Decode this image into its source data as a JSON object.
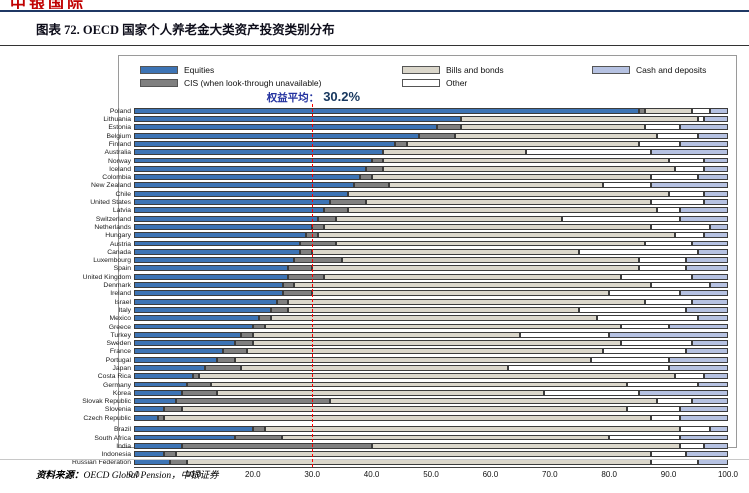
{
  "header": {
    "logo_text": "中银国际",
    "title": "图表 72. OECD 国家个人养老金大类资产投资类别分布"
  },
  "footer": {
    "source_label": "资料来源：",
    "source_text": "OECD Global Pension，中银证券"
  },
  "chart_data": {
    "type": "bar",
    "stacked": true,
    "orientation": "horizontal",
    "unit": "percent",
    "xlim": [
      0,
      100
    ],
    "x_ticks": [
      "0.0",
      "10.0",
      "20.0",
      "30.0",
      "40.0",
      "50.0",
      "60.0",
      "70.0",
      "80.0",
      "90.0",
      "100.0"
    ],
    "legend_position": "top",
    "grid": false,
    "annotation": {
      "label": "权益平均：",
      "value": "30.2%",
      "x": 30.2,
      "line_color": "#ff0000"
    },
    "series": [
      {
        "name": "Equities",
        "color": "#3d74b5"
      },
      {
        "name": "CIS (when look-through unavailable)",
        "color": "#808080"
      },
      {
        "name": "Bills and bonds",
        "color": "#dbd7cb"
      },
      {
        "name": "Other",
        "color": "#ffffff"
      },
      {
        "name": "Cash and deposits",
        "color": "#b6c2e2"
      }
    ],
    "gap_after_index": 37,
    "countries": [
      {
        "name": "Poland",
        "values": [
          85,
          1,
          8,
          3,
          3
        ]
      },
      {
        "name": "Lithuania",
        "values": [
          55,
          0,
          40,
          1,
          4
        ]
      },
      {
        "name": "Estonia",
        "values": [
          51,
          4,
          31,
          6,
          8
        ]
      },
      {
        "name": "Belgium",
        "values": [
          48,
          6,
          34,
          7,
          5
        ]
      },
      {
        "name": "Finland",
        "values": [
          44,
          2,
          39,
          7,
          8
        ]
      },
      {
        "name": "Australia",
        "values": [
          42,
          0,
          24,
          21,
          13
        ]
      },
      {
        "name": "Norway",
        "values": [
          40,
          2,
          48,
          6,
          4
        ]
      },
      {
        "name": "Iceland",
        "values": [
          39,
          3,
          49,
          5,
          4
        ]
      },
      {
        "name": "Colombia",
        "values": [
          38,
          2,
          47,
          8,
          5
        ]
      },
      {
        "name": "New Zealand",
        "values": [
          37,
          6,
          36,
          8,
          13
        ]
      },
      {
        "name": "Chile",
        "values": [
          36,
          0,
          54,
          6,
          4
        ]
      },
      {
        "name": "United States",
        "values": [
          33,
          6,
          48,
          9,
          4
        ]
      },
      {
        "name": "Latvia",
        "values": [
          32,
          4,
          52,
          4,
          8
        ]
      },
      {
        "name": "Switzerland",
        "values": [
          31,
          3,
          38,
          20,
          8
        ]
      },
      {
        "name": "Netherlands",
        "values": [
          30,
          2,
          55,
          10,
          3
        ]
      },
      {
        "name": "Hungary",
        "values": [
          29,
          2,
          60,
          5,
          4
        ]
      },
      {
        "name": "Austria",
        "values": [
          28,
          6,
          52,
          8,
          6
        ]
      },
      {
        "name": "Canada",
        "values": [
          28,
          2,
          45,
          20,
          5
        ]
      },
      {
        "name": "Luxembourg",
        "values": [
          27,
          8,
          50,
          8,
          7
        ]
      },
      {
        "name": "Spain",
        "values": [
          26,
          4,
          55,
          8,
          7
        ]
      },
      {
        "name": "United Kingdom",
        "values": [
          26,
          6,
          50,
          12,
          6
        ]
      },
      {
        "name": "Denmark",
        "values": [
          25,
          2,
          60,
          10,
          3
        ]
      },
      {
        "name": "Ireland",
        "values": [
          25,
          5,
          50,
          12,
          8
        ]
      },
      {
        "name": "Israel",
        "values": [
          24,
          2,
          60,
          8,
          6
        ]
      },
      {
        "name": "Italy",
        "values": [
          23,
          3,
          49,
          18,
          7
        ]
      },
      {
        "name": "Mexico",
        "values": [
          21,
          2,
          55,
          17,
          5
        ]
      },
      {
        "name": "Greece",
        "values": [
          20,
          2,
          60,
          8,
          10
        ]
      },
      {
        "name": "Turkey",
        "values": [
          18,
          2,
          45,
          15,
          20
        ]
      },
      {
        "name": "Sweden",
        "values": [
          17,
          3,
          62,
          12,
          6
        ]
      },
      {
        "name": "France",
        "values": [
          15,
          4,
          60,
          14,
          7
        ]
      },
      {
        "name": "Portugal",
        "values": [
          14,
          3,
          60,
          13,
          10
        ]
      },
      {
        "name": "Japan",
        "values": [
          12,
          6,
          45,
          27,
          10
        ]
      },
      {
        "name": "Costa Rica",
        "values": [
          10,
          1,
          80,
          5,
          4
        ]
      },
      {
        "name": "Germany",
        "values": [
          9,
          4,
          70,
          12,
          5
        ]
      },
      {
        "name": "Korea",
        "values": [
          8,
          6,
          55,
          16,
          15
        ]
      },
      {
        "name": "Slovak Republic",
        "values": [
          7,
          26,
          55,
          6,
          6
        ]
      },
      {
        "name": "Slovenia",
        "values": [
          5,
          3,
          75,
          9,
          8
        ]
      },
      {
        "name": "Czech Republic",
        "values": [
          4,
          1,
          82,
          5,
          8
        ]
      },
      {
        "name": "Brazil",
        "values": [
          20,
          2,
          70,
          5,
          3
        ]
      },
      {
        "name": "South Africa",
        "values": [
          17,
          8,
          55,
          12,
          8
        ]
      },
      {
        "name": "India",
        "values": [
          8,
          32,
          52,
          4,
          4
        ]
      },
      {
        "name": "Indonesia",
        "values": [
          5,
          2,
          80,
          6,
          7
        ]
      },
      {
        "name": "Russian Federation",
        "values": [
          6,
          3,
          78,
          8,
          5
        ]
      }
    ]
  }
}
